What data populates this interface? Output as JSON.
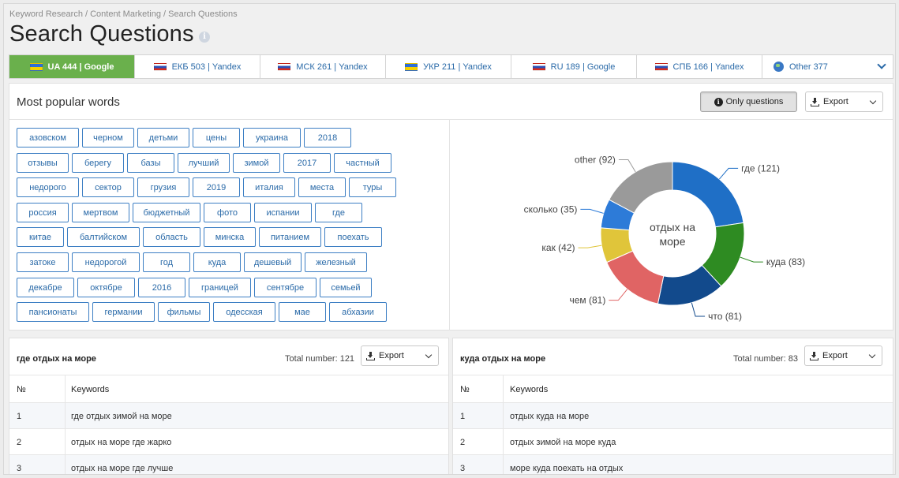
{
  "breadcrumb": "Keyword Research / Content Marketing / Search Questions",
  "page_title": "Search Questions",
  "tabs": [
    {
      "label": "UA 444 | Google",
      "flag": "ua",
      "active": true
    },
    {
      "label": "ЕКБ 503 | Yandex",
      "flag": "ru",
      "active": false
    },
    {
      "label": "МСК 261 | Yandex",
      "flag": "ru",
      "active": false
    },
    {
      "label": "УКР 211 | Yandex",
      "flag": "ua",
      "active": false
    },
    {
      "label": "RU 189 | Google",
      "flag": "ru",
      "active": false
    },
    {
      "label": "СПБ 166 | Yandex",
      "flag": "ru",
      "active": false
    },
    {
      "label": "Other 377",
      "flag": "globe",
      "active": false
    }
  ],
  "popular": {
    "title": "Most popular words",
    "only_questions_label": "Only questions",
    "export_label": "Export",
    "words": [
      [
        "азовском",
        "черном",
        "детьми",
        "цены",
        "украина",
        "2018"
      ],
      [
        "отзывы",
        "берегу",
        "базы",
        "лучший",
        "зимой",
        "2017",
        "частный"
      ],
      [
        "недорого",
        "сектор",
        "грузия",
        "2019",
        "италия",
        "места",
        "туры"
      ],
      [
        "россия",
        "мертвом",
        "бюджетный",
        "фото",
        "испании",
        "где"
      ],
      [
        "китае",
        "балтийском",
        "область",
        "минска",
        "питанием",
        "поехать"
      ],
      [
        "затоке",
        "недорогой",
        "год",
        "куда",
        "дешевый",
        "железный"
      ],
      [
        "декабре",
        "октябре",
        "2016",
        "границей",
        "сентябре",
        "семьей"
      ],
      [
        "пансионаты",
        "германии",
        "фильмы",
        "одесская",
        "мае",
        "абхазии"
      ]
    ]
  },
  "chart_data": {
    "type": "pie",
    "variant": "donut",
    "center_label": "отдых на море",
    "slices": [
      {
        "label": "где",
        "value": 121,
        "color": "#1f6fc6",
        "display": "где (121)"
      },
      {
        "label": "куда",
        "value": 83,
        "color": "#2e8b22",
        "display": "куда (83)"
      },
      {
        "label": "что",
        "value": 81,
        "color": "#124a8c",
        "display": "что (81)"
      },
      {
        "label": "чем",
        "value": 81,
        "color": "#e06464",
        "display": "чем (81)"
      },
      {
        "label": "как",
        "value": 42,
        "color": "#e0c53a",
        "display": "как (42)"
      },
      {
        "label": "сколько",
        "value": 35,
        "color": "#2d7bd8",
        "display": "сколько (35)"
      },
      {
        "label": "other",
        "value": 92,
        "color": "#9a9a9a",
        "display": "other (92)"
      }
    ]
  },
  "tables": [
    {
      "title": "где отдых на море",
      "total_text": "Total number: 121",
      "export_label": "Export",
      "headers": [
        "№",
        "Keywords"
      ],
      "rows": [
        [
          "1",
          "где отдых зимой на море"
        ],
        [
          "2",
          "отдых на море где жарко"
        ],
        [
          "3",
          "отдых на море где лучше"
        ]
      ]
    },
    {
      "title": "куда отдых на море",
      "total_text": "Total number: 83",
      "export_label": "Export",
      "headers": [
        "№",
        "Keywords"
      ],
      "rows": [
        [
          "1",
          "отдых куда на море"
        ],
        [
          "2",
          "отдых зимой на море куда"
        ],
        [
          "3",
          "море куда поехать на отдых"
        ]
      ]
    }
  ]
}
